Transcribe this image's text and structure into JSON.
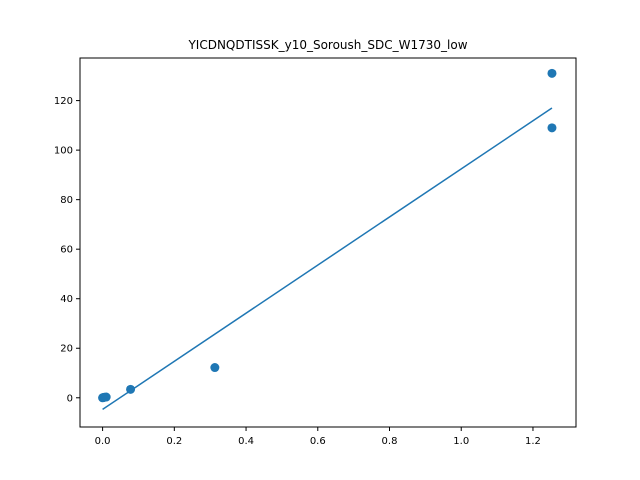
{
  "chart_data": {
    "type": "scatter",
    "title": "YICDNQDTISSK_y10_Soroush_SDC_W1730_low",
    "xlabel": "",
    "ylabel": "",
    "xlim": [
      -0.063,
      1.32
    ],
    "ylim": [
      -11.8,
      137.2
    ],
    "xticks": [
      0.0,
      0.2,
      0.4,
      0.6,
      0.8,
      1.0,
      1.2
    ],
    "xtick_labels": [
      "0.0",
      "0.2",
      "0.4",
      "0.6",
      "0.8",
      "1.0",
      "1.2"
    ],
    "yticks": [
      0,
      20,
      40,
      60,
      80,
      100,
      120
    ],
    "ytick_labels": [
      "0",
      "20",
      "40",
      "60",
      "80",
      "100",
      "120"
    ],
    "grid": false,
    "color": "#1f77b4",
    "series": [
      {
        "kind": "scatter",
        "points": [
          {
            "x": 0.0,
            "y": 0.0
          },
          {
            "x": 0.002,
            "y": 0.1
          },
          {
            "x": 0.005,
            "y": 0.2
          },
          {
            "x": 0.01,
            "y": 0.3
          },
          {
            "x": 0.078,
            "y": 3.4
          },
          {
            "x": 0.313,
            "y": 12.2
          },
          {
            "x": 1.253,
            "y": 131.0
          },
          {
            "x": 1.253,
            "y": 109.0
          }
        ]
      },
      {
        "kind": "line",
        "points": [
          {
            "x": 0.0,
            "y": -4.7
          },
          {
            "x": 1.253,
            "y": 117.0
          }
        ]
      }
    ]
  }
}
